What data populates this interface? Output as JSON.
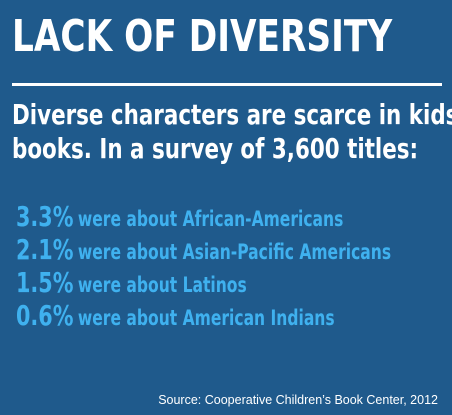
{
  "title": "LACK OF DIVERSITY",
  "lede": {
    "line1": "Diverse characters are scarce in kids’",
    "line2": "books. In a survey of 3,600 titles:"
  },
  "stats": [
    {
      "value": "3.3%",
      "text": "were about African-Americans"
    },
    {
      "value": "2.1%",
      "text": "were about Asian-Pacific Americans"
    },
    {
      "value": "1.5%",
      "text": "were about Latinos"
    },
    {
      "value": "0.6%",
      "text": "were about American Indians"
    }
  ],
  "source": "Source: Cooperative Children’s Book Center, 2012",
  "colors": {
    "background": "#1f5a8c",
    "accent": "#3fb1ef",
    "text": "#ffffff"
  }
}
